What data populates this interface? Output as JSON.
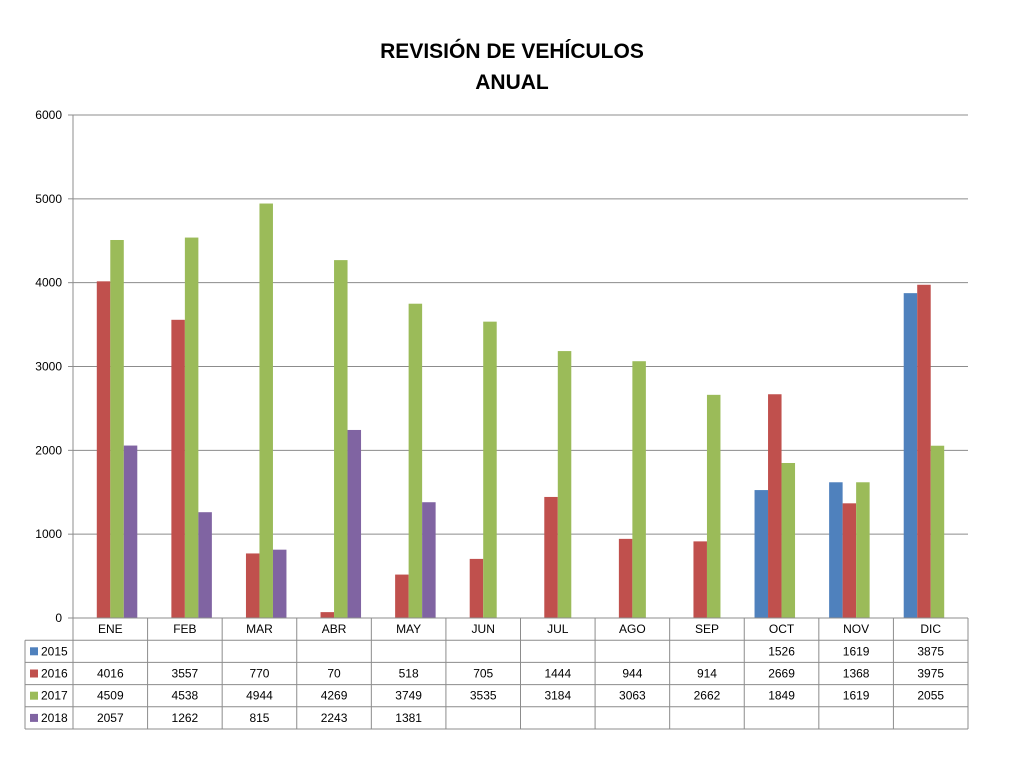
{
  "chart_data": {
    "type": "bar",
    "title": [
      "REVISIÓN DE VEHÍCULOS",
      "ANUAL"
    ],
    "categories": [
      "ENE",
      "FEB",
      "MAR",
      "ABR",
      "MAY",
      "JUN",
      "JUL",
      "AGO",
      "SEP",
      "OCT",
      "NOV",
      "DIC"
    ],
    "series": [
      {
        "name": "2015",
        "color": "#4F81BD",
        "values": [
          null,
          null,
          null,
          null,
          null,
          null,
          null,
          null,
          null,
          1526,
          1619,
          3875
        ]
      },
      {
        "name": "2016",
        "color": "#C0504D",
        "values": [
          4016,
          3557,
          770,
          70,
          518,
          705,
          1444,
          944,
          914,
          2669,
          1368,
          3975
        ]
      },
      {
        "name": "2017",
        "color": "#9BBB59",
        "values": [
          4509,
          4538,
          4944,
          4269,
          3749,
          3535,
          3184,
          3063,
          2662,
          1849,
          1619,
          2055
        ]
      },
      {
        "name": "2018",
        "color": "#8064A2",
        "values": [
          2057,
          1262,
          815,
          2243,
          1381,
          null,
          null,
          null,
          null,
          null,
          null,
          null
        ]
      }
    ],
    "ylim": [
      0,
      6000
    ],
    "yticks": [
      0,
      1000,
      2000,
      3000,
      4000,
      5000,
      6000
    ],
    "grid": true,
    "legend": "data-table"
  }
}
